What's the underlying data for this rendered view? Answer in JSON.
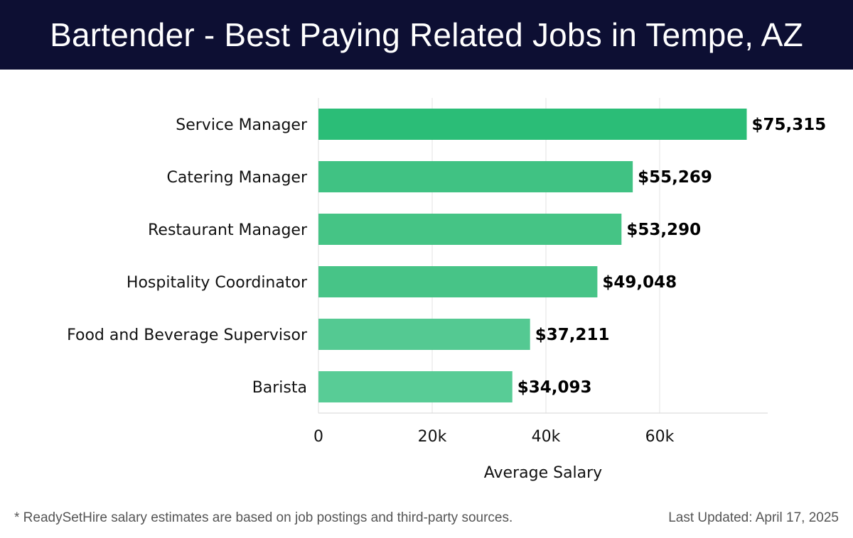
{
  "header": {
    "title": "Bartender - Best Paying Related Jobs in Tempe, AZ"
  },
  "chart_data": {
    "type": "bar",
    "orientation": "horizontal",
    "title": "Bartender - Best Paying Related Jobs in Tempe, AZ",
    "xlabel": "Average Salary",
    "ylabel": "",
    "categories": [
      "Service Manager",
      "Catering Manager",
      "Restaurant Manager",
      "Hospitality Coordinator",
      "Food and Beverage Supervisor",
      "Barista"
    ],
    "values": [
      75315,
      55269,
      53290,
      49048,
      37211,
      34093
    ],
    "value_labels": [
      "$75,315",
      "$55,269",
      "$53,290",
      "$49,048",
      "$37,211",
      "$34,093"
    ],
    "xticks": [
      0,
      20000,
      40000,
      60000
    ],
    "xtick_labels": [
      "0",
      "20k",
      "40k",
      "60k"
    ],
    "xlim": [
      0,
      79000
    ],
    "grid": true,
    "bar_colors": [
      "#2bbd77",
      "#40c283",
      "#45c485",
      "#47c487",
      "#54c992",
      "#58cc96"
    ]
  },
  "footer": {
    "note": "* ReadySetHire salary estimates are based on job postings and third-party sources.",
    "updated": "Last Updated: April 17, 2025"
  }
}
